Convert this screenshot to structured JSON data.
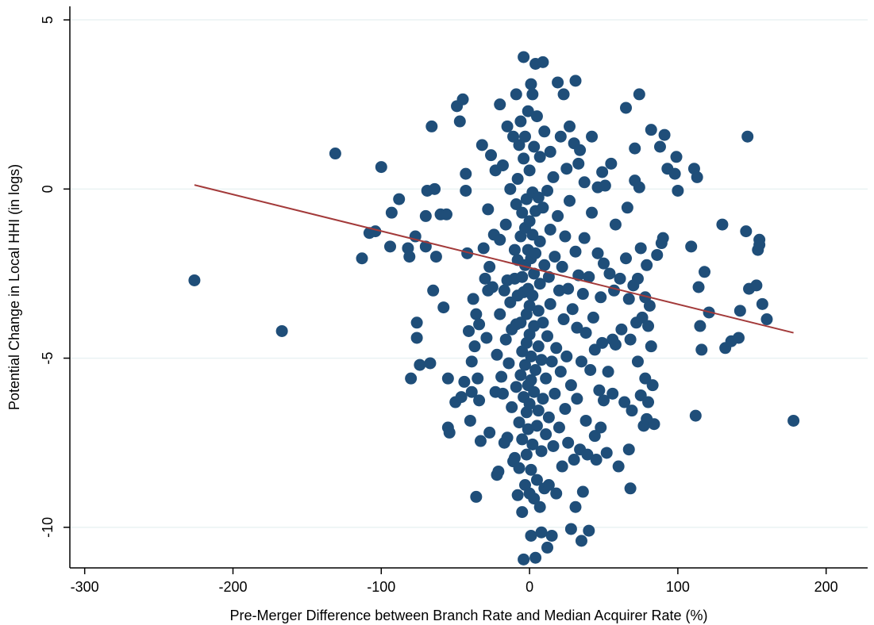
{
  "chart_data": {
    "type": "scatter",
    "title": "",
    "xlabel": "Pre-Merger Difference between Branch Rate and Median Acquirer Rate (%)",
    "ylabel": "Potential Change in Local HHI (in logs)",
    "xlim": [
      -310,
      228
    ],
    "ylim": [
      -11.2,
      5.4
    ],
    "xticks": [
      -300,
      -200,
      -100,
      0,
      100,
      200
    ],
    "xtick_labels": [
      "-300",
      "-200",
      "-100",
      "0",
      "100",
      "200"
    ],
    "yticks": [
      -10,
      -5,
      0,
      5
    ],
    "ytick_labels": [
      "-10",
      "-5",
      "0",
      "5"
    ],
    "grid": "horizontal",
    "legend": "none",
    "colors": {
      "points": "#1f4e79",
      "fit_line": "#a33a3a",
      "grid": "#eaf2f3",
      "axis": "#000000"
    },
    "fit_line": {
      "x": [
        -226,
        178
      ],
      "y": [
        0.12,
        -4.25
      ]
    },
    "points": [
      [
        -226,
        -2.7
      ],
      [
        -167,
        -4.2
      ],
      [
        -131,
        1.05
      ],
      [
        -113,
        -2.05
      ],
      [
        -108,
        -1.3
      ],
      [
        -104,
        -1.25
      ],
      [
        -100,
        0.65
      ],
      [
        -94,
        -1.7
      ],
      [
        -93,
        -0.7
      ],
      [
        -88,
        -0.3
      ],
      [
        -82,
        -1.75
      ],
      [
        -81,
        -2.0
      ],
      [
        -80,
        -5.6
      ],
      [
        -77,
        -1.4
      ],
      [
        -76,
        -3.95
      ],
      [
        -76,
        -4.4
      ],
      [
        -74,
        -5.2
      ],
      [
        -70,
        -1.7
      ],
      [
        -70,
        -0.8
      ],
      [
        -69,
        -0.05
      ],
      [
        -67,
        -5.15
      ],
      [
        -66,
        1.85
      ],
      [
        -65,
        -3.0
      ],
      [
        -64,
        0.0
      ],
      [
        -63,
        -2.0
      ],
      [
        -60,
        -0.75
      ],
      [
        -58,
        -3.5
      ],
      [
        -56,
        -0.75
      ],
      [
        -55,
        -5.6
      ],
      [
        -55,
        -7.05
      ],
      [
        -54,
        -7.2
      ],
      [
        -50,
        -6.3
      ],
      [
        -49,
        2.45
      ],
      [
        -47,
        2.0
      ],
      [
        -46,
        -6.15
      ],
      [
        -45,
        2.65
      ],
      [
        -44,
        -5.7
      ],
      [
        -43,
        -0.05
      ],
      [
        -43,
        0.45
      ],
      [
        -42,
        -1.9
      ],
      [
        -41,
        -4.2
      ],
      [
        -40,
        -6.85
      ],
      [
        -39,
        -5.1
      ],
      [
        -39,
        -6.0
      ],
      [
        -38,
        -3.25
      ],
      [
        -37,
        -4.65
      ],
      [
        -36,
        -9.1
      ],
      [
        -36,
        -3.7
      ],
      [
        -35,
        -5.6
      ],
      [
        -34,
        -4.0
      ],
      [
        -34,
        -6.25
      ],
      [
        -33,
        -7.45
      ],
      [
        -32,
        1.3
      ],
      [
        -31,
        -1.75
      ],
      [
        -30,
        -2.65
      ],
      [
        -29,
        -4.4
      ],
      [
        -28,
        -0.6
      ],
      [
        -28,
        -3.0
      ],
      [
        -27,
        -7.2
      ],
      [
        -27,
        -2.3
      ],
      [
        -26,
        1.0
      ],
      [
        -25,
        -2.9
      ],
      [
        -24,
        -1.35
      ],
      [
        -23,
        0.55
      ],
      [
        -23,
        -6.0
      ],
      [
        -22,
        -4.9
      ],
      [
        -22,
        -8.45
      ],
      [
        -21,
        -8.35
      ],
      [
        -20,
        2.5
      ],
      [
        -20,
        -1.5
      ],
      [
        -20,
        -3.7
      ],
      [
        -19,
        -5.55
      ],
      [
        -18,
        -6.05
      ],
      [
        -18,
        0.7
      ],
      [
        -17,
        -3.0
      ],
      [
        -17,
        -7.5
      ],
      [
        -16,
        -1.05
      ],
      [
        -16,
        -4.45
      ],
      [
        -15,
        1.85
      ],
      [
        -15,
        -2.7
      ],
      [
        -15,
        -7.35
      ],
      [
        -14,
        -5.15
      ],
      [
        -13,
        0.0
      ],
      [
        -13,
        -3.35
      ],
      [
        -12,
        -4.15
      ],
      [
        -12,
        -6.45
      ],
      [
        -11,
        -8.05
      ],
      [
        -11,
        1.55
      ],
      [
        -10,
        -1.8
      ],
      [
        -10,
        -2.65
      ],
      [
        -10,
        -7.95
      ],
      [
        -9,
        2.8
      ],
      [
        -9,
        -0.45
      ],
      [
        -9,
        -4.0
      ],
      [
        -9,
        -5.85
      ],
      [
        -8,
        -9.05
      ],
      [
        -8,
        0.3
      ],
      [
        -8,
        -2.1
      ],
      [
        -8,
        -3.15
      ],
      [
        -7,
        -6.9
      ],
      [
        -7,
        -8.25
      ],
      [
        -7,
        1.3
      ],
      [
        -6,
        -3.95
      ],
      [
        -6,
        -5.5
      ],
      [
        -6,
        -1.4
      ],
      [
        -6,
        2.0
      ],
      [
        -5,
        -0.7
      ],
      [
        -5,
        -2.6
      ],
      [
        -5,
        -4.8
      ],
      [
        -5,
        -7.4
      ],
      [
        -5,
        -9.55
      ],
      [
        -4,
        3.9
      ],
      [
        -4,
        -10.95
      ],
      [
        -4,
        0.9
      ],
      [
        -4,
        -3.05
      ],
      [
        -4,
        -6.15
      ],
      [
        -3,
        -1.15
      ],
      [
        -3,
        -2.25
      ],
      [
        -3,
        -5.2
      ],
      [
        -3,
        -8.75
      ],
      [
        -3,
        1.55
      ],
      [
        -2,
        -0.3
      ],
      [
        -2,
        -3.7
      ],
      [
        -2,
        -4.55
      ],
      [
        -2,
        -6.6
      ],
      [
        -2,
        -7.85
      ],
      [
        -1,
        2.3
      ],
      [
        -1,
        -1.8
      ],
      [
        -1,
        -2.95
      ],
      [
        -1,
        -5.8
      ],
      [
        -1,
        -7.1
      ],
      [
        0,
        0.55
      ],
      [
        0,
        -0.95
      ],
      [
        0,
        -3.45
      ],
      [
        0,
        -4.3
      ],
      [
        0,
        -6.35
      ],
      [
        0,
        -9.0
      ],
      [
        1,
        -10.25
      ],
      [
        1,
        3.1
      ],
      [
        1,
        -2.05
      ],
      [
        1,
        -4.95
      ],
      [
        1,
        -5.65
      ],
      [
        1,
        -8.3
      ],
      [
        2,
        2.8
      ],
      [
        2,
        -0.1
      ],
      [
        2,
        -1.35
      ],
      [
        2,
        -3.15
      ],
      [
        2,
        -7.55
      ],
      [
        3,
        1.25
      ],
      [
        3,
        -2.5
      ],
      [
        3,
        -4.05
      ],
      [
        3,
        -6.0
      ],
      [
        3,
        -9.15
      ],
      [
        4,
        -10.9
      ],
      [
        4,
        3.7
      ],
      [
        4,
        -0.65
      ],
      [
        4,
        -1.9
      ],
      [
        4,
        -5.35
      ],
      [
        5,
        -7.0
      ],
      [
        5,
        -8.6
      ],
      [
        5,
        2.15
      ],
      [
        6,
        -0.25
      ],
      [
        6,
        -3.6
      ],
      [
        6,
        -4.65
      ],
      [
        6,
        -6.55
      ],
      [
        7,
        -9.4
      ],
      [
        7,
        -1.55
      ],
      [
        7,
        -2.8
      ],
      [
        7,
        0.95
      ],
      [
        8,
        -5.05
      ],
      [
        8,
        -7.75
      ],
      [
        8,
        -10.15
      ],
      [
        9,
        3.75
      ],
      [
        9,
        -0.55
      ],
      [
        9,
        -3.95
      ],
      [
        9,
        -6.2
      ],
      [
        10,
        -2.25
      ],
      [
        10,
        -8.85
      ],
      [
        10,
        1.7
      ],
      [
        11,
        -5.6
      ],
      [
        11,
        -7.25
      ],
      [
        12,
        -0.05
      ],
      [
        12,
        -4.35
      ],
      [
        12,
        -10.6
      ],
      [
        13,
        -2.6
      ],
      [
        13,
        -6.75
      ],
      [
        13,
        -8.75
      ],
      [
        14,
        1.1
      ],
      [
        14,
        -1.2
      ],
      [
        14,
        -3.4
      ],
      [
        15,
        -5.1
      ],
      [
        15,
        -10.25
      ],
      [
        16,
        -7.6
      ],
      [
        16,
        0.35
      ],
      [
        17,
        -2.0
      ],
      [
        17,
        -6.05
      ],
      [
        18,
        -9.0
      ],
      [
        18,
        -4.7
      ],
      [
        19,
        3.15
      ],
      [
        19,
        -0.8
      ],
      [
        20,
        -3.0
      ],
      [
        20,
        -7.05
      ],
      [
        21,
        1.55
      ],
      [
        21,
        -5.4
      ],
      [
        22,
        -2.3
      ],
      [
        22,
        -8.2
      ],
      [
        23,
        2.8
      ],
      [
        23,
        -3.85
      ],
      [
        24,
        -1.4
      ],
      [
        24,
        -6.5
      ],
      [
        25,
        0.6
      ],
      [
        25,
        -4.95
      ],
      [
        26,
        -7.5
      ],
      [
        26,
        -2.95
      ],
      [
        27,
        1.85
      ],
      [
        27,
        -0.35
      ],
      [
        28,
        -10.05
      ],
      [
        28,
        -5.8
      ],
      [
        29,
        -3.55
      ],
      [
        30,
        1.35
      ],
      [
        30,
        -8.0
      ],
      [
        31,
        3.2
      ],
      [
        31,
        -9.4
      ],
      [
        31,
        -1.85
      ],
      [
        32,
        -6.2
      ],
      [
        32,
        -4.1
      ],
      [
        33,
        0.75
      ],
      [
        33,
        -2.55
      ],
      [
        34,
        -7.7
      ],
      [
        34,
        1.15
      ],
      [
        35,
        -10.4
      ],
      [
        35,
        -5.1
      ],
      [
        36,
        -3.1
      ],
      [
        36,
        -8.95
      ],
      [
        37,
        0.2
      ],
      [
        37,
        -1.45
      ],
      [
        38,
        -6.85
      ],
      [
        38,
        -4.25
      ],
      [
        39,
        -7.85
      ],
      [
        40,
        -10.1
      ],
      [
        40,
        -2.6
      ],
      [
        41,
        -5.35
      ],
      [
        42,
        -0.7
      ],
      [
        42,
        1.55
      ],
      [
        43,
        -3.8
      ],
      [
        44,
        -7.3
      ],
      [
        44,
        -4.75
      ],
      [
        45,
        -8.0
      ],
      [
        46,
        -1.9
      ],
      [
        46,
        0.05
      ],
      [
        47,
        -5.95
      ],
      [
        48,
        -3.2
      ],
      [
        48,
        -7.05
      ],
      [
        49,
        0.5
      ],
      [
        49,
        -4.55
      ],
      [
        50,
        -6.25
      ],
      [
        50,
        -2.2
      ],
      [
        51,
        0.1
      ],
      [
        52,
        -7.8
      ],
      [
        53,
        -5.4
      ],
      [
        54,
        -2.5
      ],
      [
        55,
        0.75
      ],
      [
        56,
        -4.45
      ],
      [
        56,
        -6.05
      ],
      [
        57,
        -3.0
      ],
      [
        58,
        -1.05
      ],
      [
        58,
        -4.6
      ],
      [
        60,
        -8.2
      ],
      [
        61,
        -2.65
      ],
      [
        62,
        -4.15
      ],
      [
        64,
        -6.3
      ],
      [
        65,
        2.4
      ],
      [
        65,
        -2.05
      ],
      [
        66,
        -0.55
      ],
      [
        67,
        -3.25
      ],
      [
        67,
        -7.7
      ],
      [
        68,
        -8.85
      ],
      [
        68,
        -4.45
      ],
      [
        69,
        -6.55
      ],
      [
        70,
        -2.85
      ],
      [
        71,
        0.25
      ],
      [
        71,
        1.2
      ],
      [
        72,
        -3.95
      ],
      [
        73,
        -5.1
      ],
      [
        73,
        -2.65
      ],
      [
        74,
        2.8
      ],
      [
        74,
        0.05
      ],
      [
        75,
        -1.75
      ],
      [
        75,
        -6.1
      ],
      [
        76,
        -3.8
      ],
      [
        77,
        -7.0
      ],
      [
        78,
        -3.2
      ],
      [
        78,
        -5.6
      ],
      [
        79,
        -6.8
      ],
      [
        79,
        -2.25
      ],
      [
        80,
        -4.05
      ],
      [
        80,
        -6.3
      ],
      [
        81,
        -3.45
      ],
      [
        82,
        -4.65
      ],
      [
        82,
        1.75
      ],
      [
        83,
        -5.8
      ],
      [
        84,
        -6.95
      ],
      [
        86,
        -1.95
      ],
      [
        88,
        1.25
      ],
      [
        89,
        -1.6
      ],
      [
        90,
        -1.45
      ],
      [
        91,
        1.6
      ],
      [
        93,
        0.6
      ],
      [
        98,
        0.45
      ],
      [
        99,
        0.95
      ],
      [
        100,
        -0.05
      ],
      [
        109,
        -1.7
      ],
      [
        111,
        0.6
      ],
      [
        112,
        -6.7
      ],
      [
        113,
        0.35
      ],
      [
        114,
        -2.9
      ],
      [
        115,
        -4.05
      ],
      [
        116,
        -4.75
      ],
      [
        118,
        -2.45
      ],
      [
        121,
        -3.65
      ],
      [
        130,
        -1.05
      ],
      [
        132,
        -4.7
      ],
      [
        136,
        -4.5
      ],
      [
        141,
        -4.4
      ],
      [
        142,
        -3.6
      ],
      [
        146,
        -1.25
      ],
      [
        147,
        1.55
      ],
      [
        148,
        -2.95
      ],
      [
        153,
        -2.85
      ],
      [
        154,
        -1.8
      ],
      [
        155,
        -1.5
      ],
      [
        155,
        -1.65
      ],
      [
        157,
        -3.4
      ],
      [
        160,
        -3.85
      ],
      [
        178,
        -6.85
      ]
    ]
  }
}
